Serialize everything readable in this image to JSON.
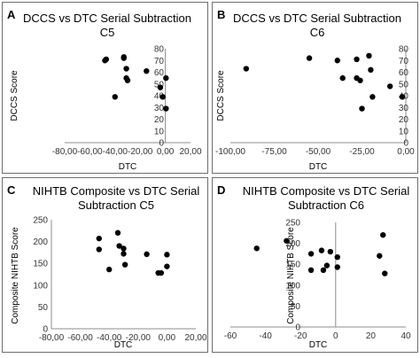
{
  "chart_data": [
    {
      "type": "scatter",
      "panel_label": "A",
      "title": [
        "DCCS vs DTC Serial Subtraction",
        "C5"
      ],
      "xlabel": "DTC",
      "ylabel": "DCCS Score",
      "xlim": [
        -80,
        20
      ],
      "ylim": [
        0,
        80
      ],
      "x_ticks": [
        "-80,00",
        "-60,00",
        "-40,00",
        "-20,00",
        "0,00",
        "20,00"
      ],
      "y_ticks": [
        "0",
        "10",
        "20",
        "30",
        "40",
        "50",
        "60",
        "70",
        "80"
      ],
      "grid": false,
      "points": [
        {
          "x": -48,
          "y": 70
        },
        {
          "x": -47,
          "y": 71
        },
        {
          "x": -40,
          "y": 39
        },
        {
          "x": -33,
          "y": 73
        },
        {
          "x": -33,
          "y": 72
        },
        {
          "x": -31,
          "y": 63
        },
        {
          "x": -31,
          "y": 55
        },
        {
          "x": -30,
          "y": 53
        },
        {
          "x": -15,
          "y": 61
        },
        {
          "x": -4,
          "y": 47
        },
        {
          "x": -2,
          "y": 39
        },
        {
          "x": 0.5,
          "y": 55
        },
        {
          "x": 0.5,
          "y": 29
        }
      ]
    },
    {
      "type": "scatter",
      "panel_label": "B",
      "title": [
        "DCCS vs DTC Serial Subtraction",
        "C6"
      ],
      "xlabel": "DTC",
      "ylabel": "DCCS Score",
      "xlim": [
        -100,
        0
      ],
      "ylim": [
        0,
        80
      ],
      "x_ticks": [
        "-100,00",
        "-75,00",
        "-50,00",
        "-25,00",
        "0,00"
      ],
      "y_ticks": [
        "0",
        "10",
        "20",
        "30",
        "40",
        "50",
        "60",
        "70",
        "80"
      ],
      "grid": false,
      "points": [
        {
          "x": -91,
          "y": 63
        },
        {
          "x": -55,
          "y": 72
        },
        {
          "x": -39,
          "y": 70
        },
        {
          "x": -36,
          "y": 55
        },
        {
          "x": -28,
          "y": 71
        },
        {
          "x": -28,
          "y": 55
        },
        {
          "x": -26,
          "y": 53
        },
        {
          "x": -25,
          "y": 29
        },
        {
          "x": -21,
          "y": 74
        },
        {
          "x": -20,
          "y": 62
        },
        {
          "x": -19,
          "y": 39
        },
        {
          "x": -9,
          "y": 48
        },
        {
          "x": -2,
          "y": 39
        }
      ]
    },
    {
      "type": "scatter",
      "panel_label": "C",
      "title": [
        "NIHTB Composite vs DTC Serial",
        "Subtraction C5"
      ],
      "xlabel": "DTC",
      "ylabel": "Composite NIHTB Score",
      "xlim": [
        -80,
        20
      ],
      "ylim": [
        0,
        250
      ],
      "x_ticks": [
        "-80,00",
        "-60,00",
        "-40,00",
        "-20,00",
        "0,00",
        "20,00"
      ],
      "y_ticks": [
        "0",
        "50",
        "100",
        "150",
        "200",
        "250"
      ],
      "grid": false,
      "points": [
        {
          "x": -47,
          "y": 207
        },
        {
          "x": -47,
          "y": 182
        },
        {
          "x": -40,
          "y": 136
        },
        {
          "x": -34,
          "y": 220
        },
        {
          "x": -33,
          "y": 190
        },
        {
          "x": -30,
          "y": 184
        },
        {
          "x": -30,
          "y": 172
        },
        {
          "x": -29,
          "y": 147
        },
        {
          "x": -14,
          "y": 171
        },
        {
          "x": -6,
          "y": 128
        },
        {
          "x": -4,
          "y": 128
        },
        {
          "x": 0,
          "y": 170
        },
        {
          "x": 0,
          "y": 143
        }
      ]
    },
    {
      "type": "scatter",
      "panel_label": "D",
      "title": [
        "NIHTB Composite vs DTC Serial",
        "Subtraction C6"
      ],
      "xlabel": "DTC",
      "ylabel": "Composite NIHTB Score",
      "xlim": [
        -60,
        40
      ],
      "ylim": [
        0,
        250
      ],
      "x_ticks": [
        "-60",
        "-40",
        "-20",
        "0",
        "20",
        "40"
      ],
      "y_ticks": [
        "0",
        "50",
        "100",
        "150",
        "200",
        "250"
      ],
      "grid": false,
      "points": [
        {
          "x": -45,
          "y": 188
        },
        {
          "x": -28,
          "y": 206
        },
        {
          "x": -14,
          "y": 175
        },
        {
          "x": -14,
          "y": 136
        },
        {
          "x": -8,
          "y": 183
        },
        {
          "x": -7,
          "y": 136
        },
        {
          "x": -5,
          "y": 147
        },
        {
          "x": -3,
          "y": 180
        },
        {
          "x": 1,
          "y": 167
        },
        {
          "x": 1,
          "y": 143
        },
        {
          "x": 25,
          "y": 170
        },
        {
          "x": 27,
          "y": 220
        },
        {
          "x": 28,
          "y": 128
        }
      ]
    }
  ]
}
